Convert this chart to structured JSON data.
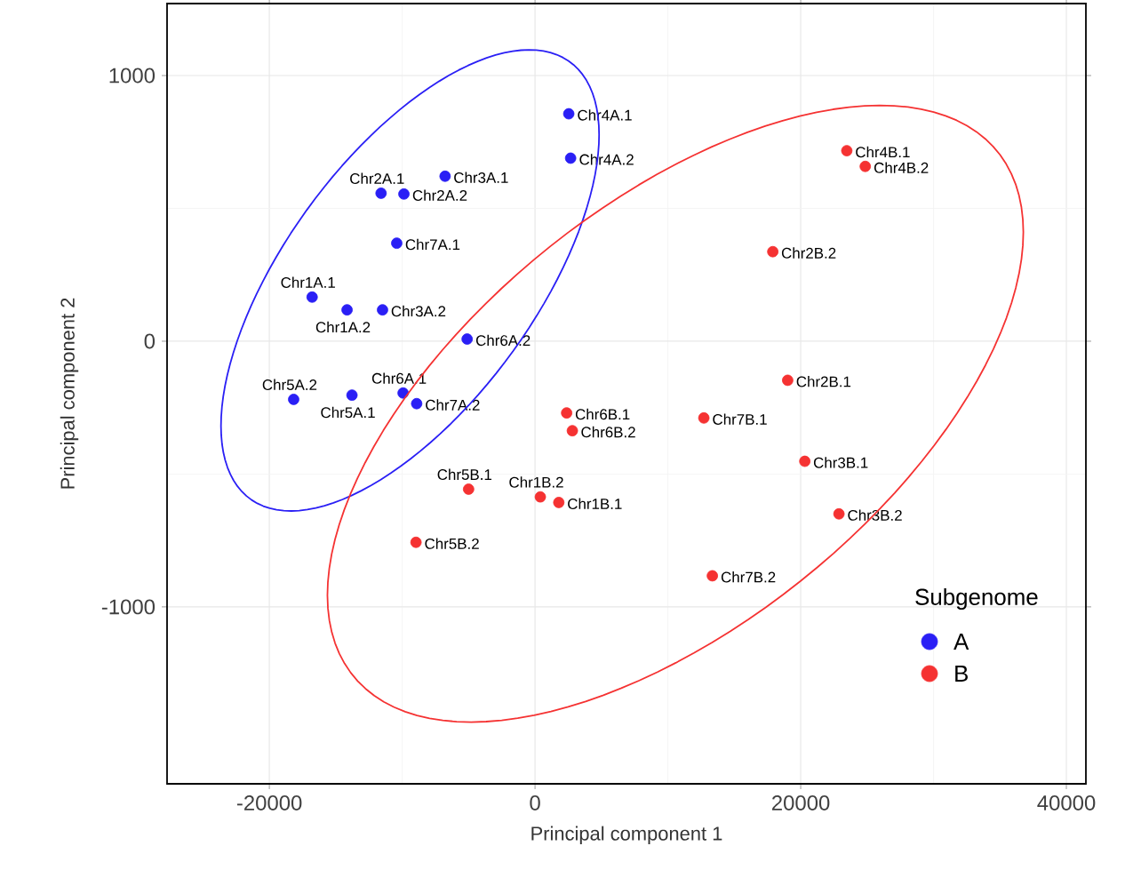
{
  "chart_data": {
    "type": "scatter",
    "xlabel": "Principal component 1",
    "ylabel": "Principal component 2",
    "legend_title": "Subgenome",
    "legend": "bottom right",
    "grid": true,
    "marker": "circle",
    "xlim": [
      -27700,
      41470
    ],
    "ylim": [
      -1666,
      1271
    ],
    "xticks": [
      -20000,
      0,
      20000,
      40000
    ],
    "yticks": [
      -1000,
      0,
      1000
    ],
    "series": [
      {
        "name": "A",
        "color": "#2a1ff5",
        "x": [
          2540,
          2680,
          -11590,
          -9870,
          -6770,
          -10410,
          -16780,
          -14150,
          -11480,
          -5110,
          -18170,
          -13780,
          -9930,
          -8910
        ],
        "values": [
          856,
          689,
          557,
          554,
          621,
          369,
          166,
          118,
          118,
          8,
          -219,
          -203,
          -195,
          -235
        ]
      },
      {
        "name": "B",
        "color": "#f53232",
        "x": [
          23470,
          24860,
          17900,
          19020,
          12710,
          2380,
          2810,
          20310,
          22880,
          -5000,
          400,
          1790,
          -8960,
          13350
        ],
        "values": [
          717,
          658,
          337,
          -147,
          -289,
          -270,
          -337,
          -452,
          -650,
          -557,
          -586,
          -607,
          -757,
          -883
        ]
      }
    ],
    "annotations": [
      {
        "text": "Chr4A.1",
        "x": 2540,
        "y": 856
      },
      {
        "text": "Chr4A.2",
        "x": 2680,
        "y": 689
      },
      {
        "text": "Chr2A.1",
        "x": -11590,
        "y": 557
      },
      {
        "text": "Chr2A.2",
        "x": -9870,
        "y": 554
      },
      {
        "text": "Chr3A.1",
        "x": -6770,
        "y": 621
      },
      {
        "text": "Chr7A.1",
        "x": -10410,
        "y": 369
      },
      {
        "text": "Chr1A.1",
        "x": -16780,
        "y": 166
      },
      {
        "text": "Chr1A.2",
        "x": -14150,
        "y": 118
      },
      {
        "text": "Chr3A.2",
        "x": -11480,
        "y": 118
      },
      {
        "text": "Chr6A.2",
        "x": -5110,
        "y": 8
      },
      {
        "text": "Chr5A.2",
        "x": -18170,
        "y": -219
      },
      {
        "text": "Chr5A.1",
        "x": -13780,
        "y": -203
      },
      {
        "text": "Chr6A.1",
        "x": -9930,
        "y": -195
      },
      {
        "text": "Chr7A.2",
        "x": -8910,
        "y": -235
      },
      {
        "text": "Chr4B.1",
        "x": 23470,
        "y": 717
      },
      {
        "text": "Chr4B.2",
        "x": 24860,
        "y": 658
      },
      {
        "text": "Chr2B.2",
        "x": 17900,
        "y": 337
      },
      {
        "text": "Chr2B.1",
        "x": 19020,
        "y": -147
      },
      {
        "text": "Chr7B.1",
        "x": 12710,
        "y": -289
      },
      {
        "text": "Chr6B.1",
        "x": 2380,
        "y": -270
      },
      {
        "text": "Chr6B.2",
        "x": 2810,
        "y": -337
      },
      {
        "text": "Chr3B.1",
        "x": 20310,
        "y": -452
      },
      {
        "text": "Chr3B.2",
        "x": 22880,
        "y": -650
      },
      {
        "text": "Chr5B.1",
        "x": -5000,
        "y": -557
      },
      {
        "text": "Chr1B.2",
        "x": 400,
        "y": -586
      },
      {
        "text": "Chr1B.1",
        "x": 1790,
        "y": -607
      },
      {
        "text": "Chr5B.2",
        "x": -8960,
        "y": -757
      },
      {
        "text": "Chr7B.2",
        "x": 13350,
        "y": -883
      }
    ]
  }
}
